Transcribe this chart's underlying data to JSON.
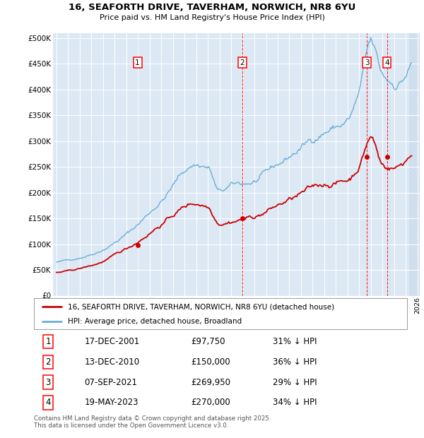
{
  "title": "16, SEAFORTH DRIVE, TAVERHAM, NORWICH, NR8 6YU",
  "subtitle": "Price paid vs. HM Land Registry's House Price Index (HPI)",
  "background_color": "#ffffff",
  "plot_bg_color": "#dce9f5",
  "grid_color": "#ffffff",
  "hpi_color": "#6baed6",
  "price_color": "#cc0000",
  "ylim": [
    0,
    500000
  ],
  "yticks": [
    0,
    50000,
    100000,
    150000,
    200000,
    250000,
    300000,
    350000,
    400000,
    450000,
    500000
  ],
  "xmin": 1995,
  "xmax": 2026,
  "sale_dates": [
    2001.96,
    2010.96,
    2021.67,
    2023.38
  ],
  "sale_prices": [
    97750,
    150000,
    269950,
    270000
  ],
  "sale_labels": [
    "1",
    "2",
    "3",
    "4"
  ],
  "footer_text": "Contains HM Land Registry data © Crown copyright and database right 2025.\nThis data is licensed under the Open Government Licence v3.0.",
  "legend_entries": [
    "16, SEAFORTH DRIVE, TAVERHAM, NORWICH, NR8 6YU (detached house)",
    "HPI: Average price, detached house, Broadland"
  ],
  "table_rows": [
    [
      "1",
      "17-DEC-2001",
      "£97,750",
      "31% ↓ HPI"
    ],
    [
      "2",
      "13-DEC-2010",
      "£150,000",
      "36% ↓ HPI"
    ],
    [
      "3",
      "07-SEP-2021",
      "£269,950",
      "29% ↓ HPI"
    ],
    [
      "4",
      "19-MAY-2023",
      "£270,000",
      "34% ↓ HPI"
    ]
  ],
  "hpi_anchor_years": [
    1995,
    1998,
    2001,
    2004,
    2007,
    2008,
    2009,
    2010,
    2012,
    2014,
    2016,
    2018,
    2020,
    2021,
    2022,
    2023,
    2024,
    2025
  ],
  "hpi_anchor_vals": [
    65000,
    82000,
    120000,
    185000,
    255000,
    250000,
    200000,
    210000,
    220000,
    250000,
    285000,
    320000,
    340000,
    390000,
    480000,
    420000,
    410000,
    430000
  ],
  "price_anchor_years": [
    1995,
    1998,
    2001,
    2004,
    2007,
    2008,
    2009,
    2010,
    2012,
    2014,
    2016,
    2018,
    2020,
    2021,
    2022,
    2023,
    2024,
    2025
  ],
  "price_anchor_vals": [
    45000,
    58000,
    90000,
    140000,
    180000,
    175000,
    145000,
    148000,
    155000,
    175000,
    195000,
    215000,
    225000,
    255000,
    310000,
    255000,
    250000,
    265000
  ]
}
